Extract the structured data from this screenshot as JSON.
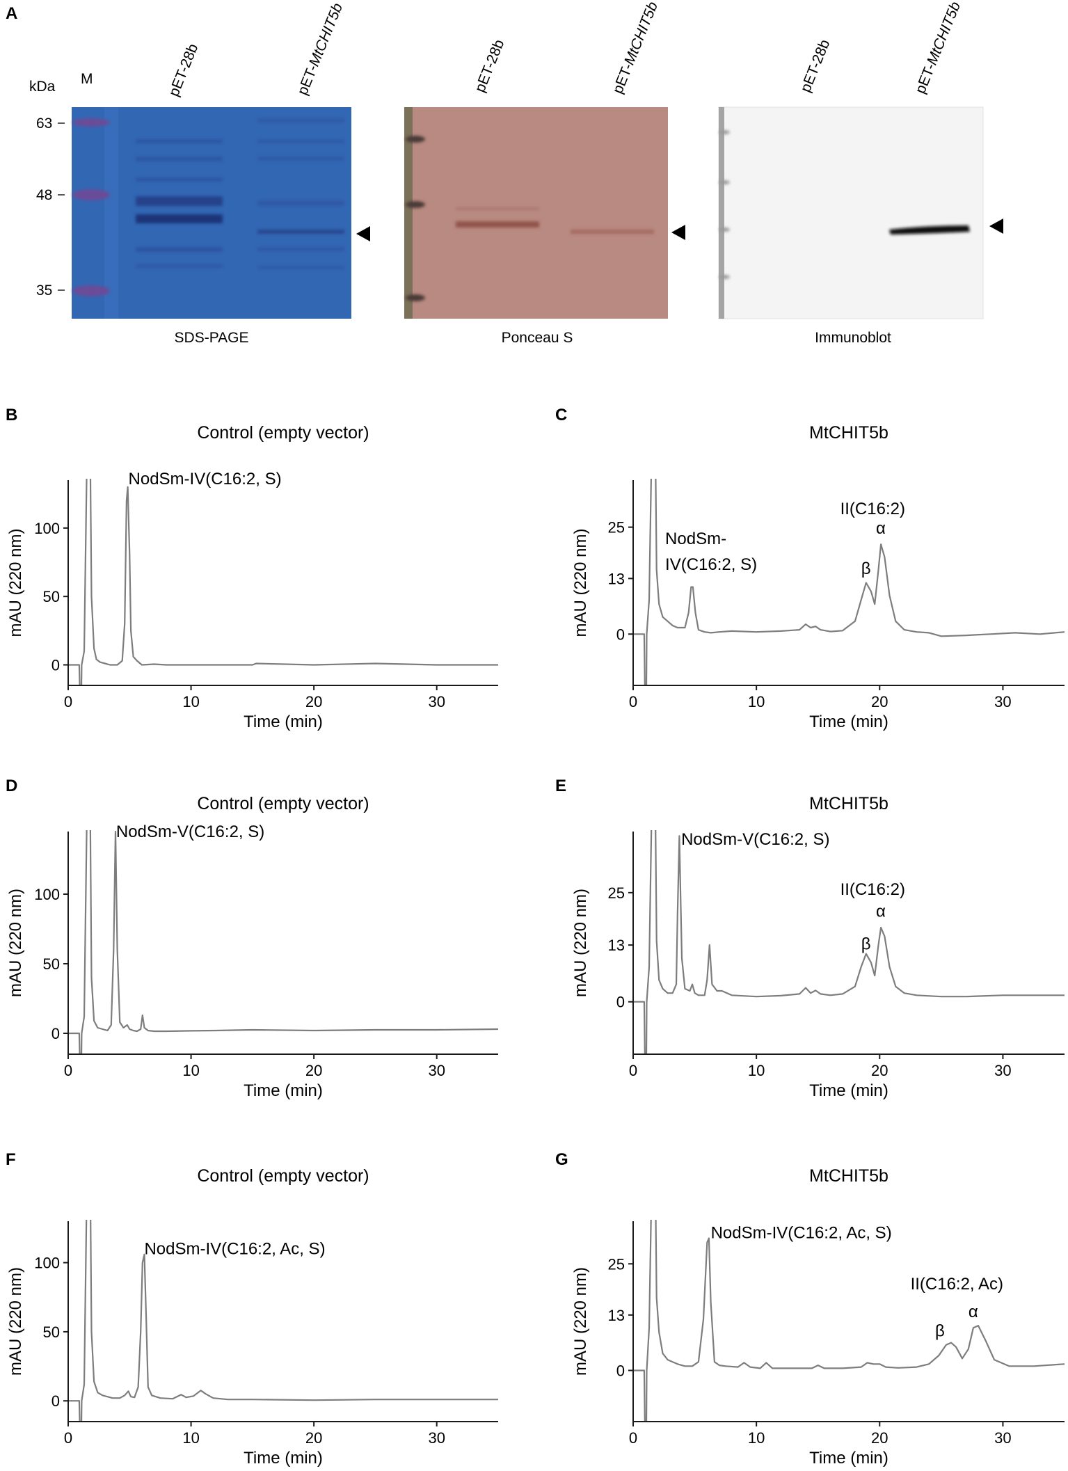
{
  "panel_a": {
    "letter": "A",
    "kda_label": "kDa",
    "marker_lane_label": "M",
    "markers": [
      "63",
      "48",
      "35"
    ],
    "blots": [
      {
        "caption": "SDS-PAGE",
        "lanes": [
          {
            "prefix": "pET-28b",
            "italic": ""
          },
          {
            "prefix": "pET-",
            "italic": "MtCHIT5b"
          }
        ]
      },
      {
        "caption": "Ponceau S",
        "lanes": [
          {
            "prefix": "pET-28b",
            "italic": ""
          },
          {
            "prefix": "pET-",
            "italic": "MtCHIT5b"
          }
        ]
      },
      {
        "caption": "Immunoblot",
        "lanes": [
          {
            "prefix": "pET-28b",
            "italic": ""
          },
          {
            "prefix": "pET-",
            "italic": "MtCHIT5b"
          }
        ]
      }
    ],
    "colors": {
      "sds_bg": "#2e63b0",
      "sds_band": "#263f86",
      "marker": "#6a4b98",
      "ponceau_bg": "#b98a81",
      "ponceau_band": "#8a4a43",
      "immuno_bg": "#f4f4f4",
      "immuno_band": "#111111"
    }
  },
  "chart_data": [
    {
      "panel": "B",
      "type": "line",
      "title": "Control (empty vector)",
      "xlabel": "Time (min)",
      "ylabel": "mAU (220 nm)",
      "xlim": [
        0,
        35
      ],
      "ylim": [
        -15,
        135
      ],
      "xticks": [
        0,
        10,
        20,
        30
      ],
      "yticks": [
        0,
        50,
        100
      ],
      "series": [
        {
          "x": [
            0,
            0.9,
            1.0,
            1.05,
            1.1,
            1.3,
            1.6,
            1.75,
            1.9,
            2.1,
            2.3,
            2.6,
            3.0,
            3.4,
            4.0,
            4.4,
            4.6,
            4.75,
            4.85,
            5.0,
            5.1,
            5.3,
            5.6,
            6.0,
            7.0,
            8.0,
            10.0,
            12.0,
            15.0,
            15.3,
            20.0,
            25.0,
            30.0,
            35.0
          ],
          "y": [
            0,
            0,
            -38,
            -38,
            0,
            10,
            200,
            200,
            50,
            12,
            4,
            2,
            1,
            0,
            0,
            3,
            30,
            120,
            130,
            80,
            25,
            6,
            3,
            0,
            0.5,
            0,
            0,
            0,
            0,
            1,
            0,
            1,
            0,
            0
          ]
        }
      ],
      "annotations": [
        {
          "text": "NodSm-IV(C16:2, S)",
          "x": 4.9,
          "y": 132
        }
      ]
    },
    {
      "panel": "C",
      "type": "line",
      "title": "MtCHIT5b",
      "xlabel": "Time (min)",
      "ylabel": "mAU (220 nm)",
      "xlim": [
        0,
        35
      ],
      "ylim": [
        -12,
        36
      ],
      "xticks": [
        0,
        10,
        20,
        30
      ],
      "yticks": [
        0,
        13,
        25
      ],
      "series": [
        {
          "x": [
            0,
            0.9,
            1.0,
            1.05,
            1.1,
            1.3,
            1.6,
            1.75,
            1.9,
            2.1,
            2.4,
            2.8,
            3.2,
            3.6,
            4.2,
            4.5,
            4.7,
            4.85,
            5.05,
            5.3,
            5.8,
            6.3,
            7.0,
            8.0,
            10.0,
            12.0,
            13.5,
            14.0,
            14.4,
            14.8,
            15.2,
            16.0,
            17.0,
            18.0,
            18.5,
            18.9,
            19.3,
            19.6,
            19.9,
            20.1,
            20.4,
            20.8,
            21.3,
            22.0,
            23.0,
            24.0,
            25.0,
            27.0,
            29.0,
            31.0,
            33.0,
            35.0
          ],
          "y": [
            0,
            0,
            -23,
            -23,
            0,
            8,
            60,
            60,
            15,
            7,
            4,
            3,
            2,
            1.5,
            1.5,
            5,
            11,
            11,
            5,
            1,
            0.5,
            0.3,
            0.5,
            0.7,
            0.5,
            0.7,
            1,
            2.3,
            1.5,
            1.8,
            1,
            0.6,
            0.8,
            3,
            8,
            12,
            10,
            7,
            15,
            21,
            18,
            9,
            3,
            1,
            0.5,
            0.3,
            -0.5,
            -0.3,
            0,
            0.3,
            0,
            0.5
          ]
        }
      ],
      "annotations": [
        {
          "text": "NodSm-",
          "x": 2.6,
          "y": 21
        },
        {
          "text": "IV(C16:2, S)",
          "x": 2.6,
          "y": 15
        },
        {
          "text": "II(C16:2)",
          "x": 16.8,
          "y": 28
        },
        {
          "text": "β",
          "x": 18.5,
          "y": 14
        },
        {
          "text": "α",
          "x": 19.7,
          "y": 23.5
        }
      ]
    },
    {
      "panel": "D",
      "type": "line",
      "title": "Control (empty vector)",
      "xlabel": "Time (min)",
      "ylabel": "mAU (220 nm)",
      "xlim": [
        0,
        35
      ],
      "ylim": [
        -15,
        145
      ],
      "xticks": [
        0,
        10,
        20,
        30
      ],
      "yticks": [
        0,
        50,
        100
      ],
      "series": [
        {
          "x": [
            0,
            0.9,
            1.0,
            1.05,
            1.1,
            1.3,
            1.6,
            1.75,
            1.9,
            2.1,
            2.4,
            2.8,
            3.2,
            3.5,
            3.7,
            3.85,
            4.0,
            4.2,
            4.5,
            4.8,
            5.0,
            5.3,
            5.6,
            5.9,
            6.05,
            6.2,
            6.5,
            7.0,
            8.0,
            10.0,
            12.0,
            15.0,
            20.0,
            25.0,
            30.0,
            35.0
          ],
          "y": [
            0,
            0,
            -38,
            -38,
            0,
            12,
            210,
            210,
            40,
            9,
            4,
            3,
            2,
            6,
            60,
            145,
            60,
            8,
            4,
            6,
            3,
            2,
            1.5,
            3,
            13,
            4,
            2,
            1.5,
            1.5,
            1.8,
            2,
            2.5,
            2,
            2.5,
            2.5,
            3
          ]
        }
      ],
      "annotations": [
        {
          "text": "NodSm-V(C16:2, S)",
          "x": 3.9,
          "y": 141
        }
      ]
    },
    {
      "panel": "E",
      "type": "line",
      "title": "MtCHIT5b",
      "xlabel": "Time (min)",
      "ylabel": "mAU (220 nm)",
      "xlim": [
        0,
        35
      ],
      "ylim": [
        -12,
        39
      ],
      "xticks": [
        0,
        10,
        20,
        30
      ],
      "yticks": [
        0,
        13,
        25
      ],
      "series": [
        {
          "x": [
            0,
            0.9,
            1.0,
            1.05,
            1.1,
            1.3,
            1.6,
            1.75,
            1.9,
            2.1,
            2.4,
            2.8,
            3.2,
            3.5,
            3.6,
            3.75,
            3.95,
            4.2,
            4.6,
            4.8,
            5.0,
            5.3,
            5.8,
            6.0,
            6.2,
            6.4,
            6.8,
            7.2,
            8.0,
            10.0,
            12.0,
            13.5,
            14.0,
            14.4,
            14.8,
            15.2,
            16.0,
            17.0,
            18.0,
            18.5,
            18.9,
            19.3,
            19.6,
            19.9,
            20.1,
            20.4,
            20.8,
            21.3,
            22.0,
            23.0,
            25.0,
            27.0,
            30.0,
            33.0,
            35.0
          ],
          "y": [
            0,
            0,
            -23,
            -23,
            0,
            8,
            60,
            60,
            14,
            5,
            3,
            2,
            2,
            4,
            20,
            38,
            10,
            3,
            2.5,
            4,
            2,
            1.5,
            1.5,
            5,
            13,
            4,
            2.5,
            2.5,
            1.5,
            1.2,
            1.4,
            1.8,
            3.2,
            2,
            2.6,
            1.8,
            1.5,
            1.8,
            3.5,
            8,
            11,
            9,
            6,
            13,
            17,
            15,
            8,
            3.5,
            2,
            1.5,
            1.2,
            1.2,
            1.5,
            1.5,
            1.5
          ]
        }
      ],
      "annotations": [
        {
          "text": "NodSm-V(C16:2, S)",
          "x": 3.9,
          "y": 36
        },
        {
          "text": "II(C16:2)",
          "x": 16.8,
          "y": 24.5
        },
        {
          "text": "β",
          "x": 18.5,
          "y": 12
        },
        {
          "text": "α",
          "x": 19.7,
          "y": 19.5
        }
      ]
    },
    {
      "panel": "F",
      "type": "line",
      "title": "Control (empty vector)",
      "xlabel": "Time (min)",
      "ylabel": "mAU (220 nm)",
      "xlim": [
        0,
        35
      ],
      "ylim": [
        -15,
        130
      ],
      "xticks": [
        0,
        10,
        20,
        30
      ],
      "yticks": [
        0,
        50,
        100
      ],
      "series": [
        {
          "x": [
            0,
            0.9,
            1.0,
            1.05,
            1.1,
            1.3,
            1.6,
            1.75,
            1.9,
            2.1,
            2.4,
            2.8,
            3.2,
            3.6,
            4.2,
            4.6,
            4.9,
            5.1,
            5.4,
            5.7,
            5.9,
            6.05,
            6.2,
            6.35,
            6.5,
            6.8,
            7.5,
            8.5,
            9.2,
            9.6,
            10.2,
            10.8,
            11.2,
            11.8,
            13.0,
            15.0,
            20.0,
            25.0,
            30.0,
            35.0
          ],
          "y": [
            0,
            0,
            -38,
            -38,
            0,
            12,
            210,
            210,
            50,
            14,
            6,
            4,
            3,
            2,
            2,
            4,
            7,
            3,
            2.5,
            10,
            50,
            100,
            106,
            60,
            10,
            4,
            2,
            1.5,
            4.5,
            2.5,
            3.5,
            7.5,
            5,
            2,
            1,
            1,
            0.5,
            1,
            1,
            1
          ]
        }
      ],
      "annotations": [
        {
          "text": "NodSm-IV(C16:2, Ac, S)",
          "x": 6.2,
          "y": 106
        }
      ]
    },
    {
      "panel": "G",
      "type": "line",
      "title": "MtCHIT5b",
      "xlabel": "Time (min)",
      "ylabel": "mAU (220 nm)",
      "xlim": [
        0,
        35
      ],
      "ylim": [
        -12,
        35
      ],
      "xticks": [
        0,
        10,
        20,
        30
      ],
      "yticks": [
        0,
        13,
        25
      ],
      "series": [
        {
          "x": [
            0,
            0.9,
            1.0,
            1.05,
            1.1,
            1.3,
            1.6,
            1.75,
            1.9,
            2.1,
            2.4,
            2.8,
            3.2,
            3.6,
            4.2,
            4.8,
            5.3,
            5.7,
            6.0,
            6.15,
            6.3,
            6.6,
            7.0,
            7.5,
            8.5,
            9.0,
            9.5,
            10.3,
            10.8,
            11.3,
            12.5,
            14.5,
            15.0,
            15.5,
            17.0,
            18.5,
            19.0,
            19.5,
            20.0,
            20.5,
            21.5,
            23.0,
            24.0,
            24.8,
            25.4,
            25.8,
            26.2,
            26.7,
            27.2,
            27.6,
            28.0,
            28.6,
            29.3,
            30.5,
            32.5,
            35.0
          ],
          "y": [
            0,
            0,
            -23,
            -23,
            0,
            10,
            60,
            60,
            17,
            9,
            4,
            2.5,
            2,
            1.5,
            1,
            1,
            2,
            12,
            30,
            31,
            16,
            2,
            1.2,
            1,
            0.8,
            1.8,
            0.8,
            0.5,
            1.8,
            0.5,
            0.5,
            0.5,
            1.2,
            0.5,
            0.5,
            0.8,
            1.8,
            1.5,
            1.5,
            0.8,
            0.6,
            0.8,
            1.5,
            3.5,
            6,
            6.5,
            5.5,
            2.8,
            5,
            10,
            10.5,
            7,
            2.5,
            1,
            1,
            1.5
          ]
        }
      ],
      "annotations": [
        {
          "text": "NodSm-IV(C16:2, Ac, S)",
          "x": 6.3,
          "y": 31
        },
        {
          "text": "II(C16:2, Ac)",
          "x": 22.5,
          "y": 19
        },
        {
          "text": "β",
          "x": 24.5,
          "y": 8
        },
        {
          "text": "α",
          "x": 27.2,
          "y": 12.5
        }
      ]
    }
  ]
}
